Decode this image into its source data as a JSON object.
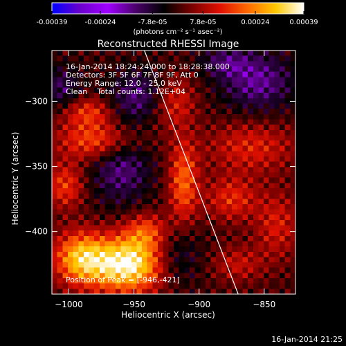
{
  "chart_data": {
    "type": "heatmap",
    "title": "Reconstructed RHESSI Image",
    "xlabel": "Heliocentric X (arcsec)",
    "ylabel": "Heliocentric Y (arcsec)",
    "xlim": [
      -1013,
      -826
    ],
    "ylim": [
      -448,
      -261
    ],
    "x_ticks": [
      -1000,
      -950,
      -900,
      -850
    ],
    "y_ticks": [
      -300,
      -350,
      -400
    ],
    "colorbar": {
      "ticks": [
        -0.00039,
        -0.00024,
        -7.8e-05,
        7.8e-05,
        0.00024,
        0.00039
      ],
      "range": [
        -0.00039,
        0.00039
      ],
      "tick_labels": [
        "-0.00039",
        "-0.00024",
        "-7.8e-05",
        "7.8e-05",
        "0.00024",
        "0.00039"
      ],
      "unit_label": "(photons cm⁻² s⁻¹ asec⁻²)",
      "colormap": [
        "#0000ff",
        "#6a00cc",
        "#a000ff",
        "#4a006a",
        "#000000",
        "#7a0000",
        "#e01000",
        "#ff6a00",
        "#ffc800",
        "#ffffff"
      ]
    },
    "info_lines": [
      "16-Jan-2014 18:24:24.000 to 18:28:38.000",
      "Detectors: 3F 5F 6F 7F 8F 9F, Att 0",
      "Energy Range: 12.0 - 25.0 keV",
      "Clean    Total counts: 1.12E+04"
    ],
    "peak_text": "Position of Peak = [-946,-421]",
    "peak": {
      "x": -946,
      "y": -421
    },
    "limb_line": [
      [
        -942,
        -261
      ],
      [
        -870,
        -448
      ]
    ],
    "blobs": [
      {
        "x": -955,
        "y": -425,
        "amp": 0.00039,
        "sx": 22,
        "sy": 15
      },
      {
        "x": -992,
        "y": -420,
        "amp": 0.00025,
        "sx": 14,
        "sy": 14
      },
      {
        "x": -940,
        "y": -400,
        "amp": 0.00016,
        "sx": 12,
        "sy": 10
      },
      {
        "x": -975,
        "y": -330,
        "amp": 0.00022,
        "sx": 22,
        "sy": 11
      },
      {
        "x": -985,
        "y": -308,
        "amp": 0.00015,
        "sx": 14,
        "sy": 8
      },
      {
        "x": -1003,
        "y": -365,
        "amp": 0.00016,
        "sx": 10,
        "sy": 12
      },
      {
        "x": -912,
        "y": -362,
        "amp": 0.0002,
        "sx": 8,
        "sy": 22
      },
      {
        "x": -920,
        "y": -300,
        "amp": 0.00014,
        "sx": 12,
        "sy": 14
      },
      {
        "x": -860,
        "y": -335,
        "amp": 0.00013,
        "sx": 24,
        "sy": 14
      },
      {
        "x": -875,
        "y": -375,
        "amp": 0.00014,
        "sx": 14,
        "sy": 12
      },
      {
        "x": -840,
        "y": -395,
        "amp": 0.00012,
        "sx": 12,
        "sy": 18
      },
      {
        "x": -870,
        "y": -425,
        "amp": 0.0001,
        "sx": 14,
        "sy": 10
      },
      {
        "x": -960,
        "y": -345,
        "amp": -0.00016,
        "sx": 16,
        "sy": 22
      },
      {
        "x": -945,
        "y": -295,
        "amp": -0.00013,
        "sx": 16,
        "sy": 14
      },
      {
        "x": -855,
        "y": -285,
        "amp": -0.00015,
        "sx": 20,
        "sy": 16
      },
      {
        "x": -920,
        "y": -420,
        "amp": -0.00013,
        "sx": 14,
        "sy": 16
      },
      {
        "x": -1005,
        "y": -290,
        "amp": -0.00011,
        "sx": 10,
        "sy": 12
      },
      {
        "x": -880,
        "y": -270,
        "amp": -0.0001,
        "sx": 14,
        "sy": 8
      }
    ]
  },
  "timestamp": "16-Jan-2014 21:25"
}
